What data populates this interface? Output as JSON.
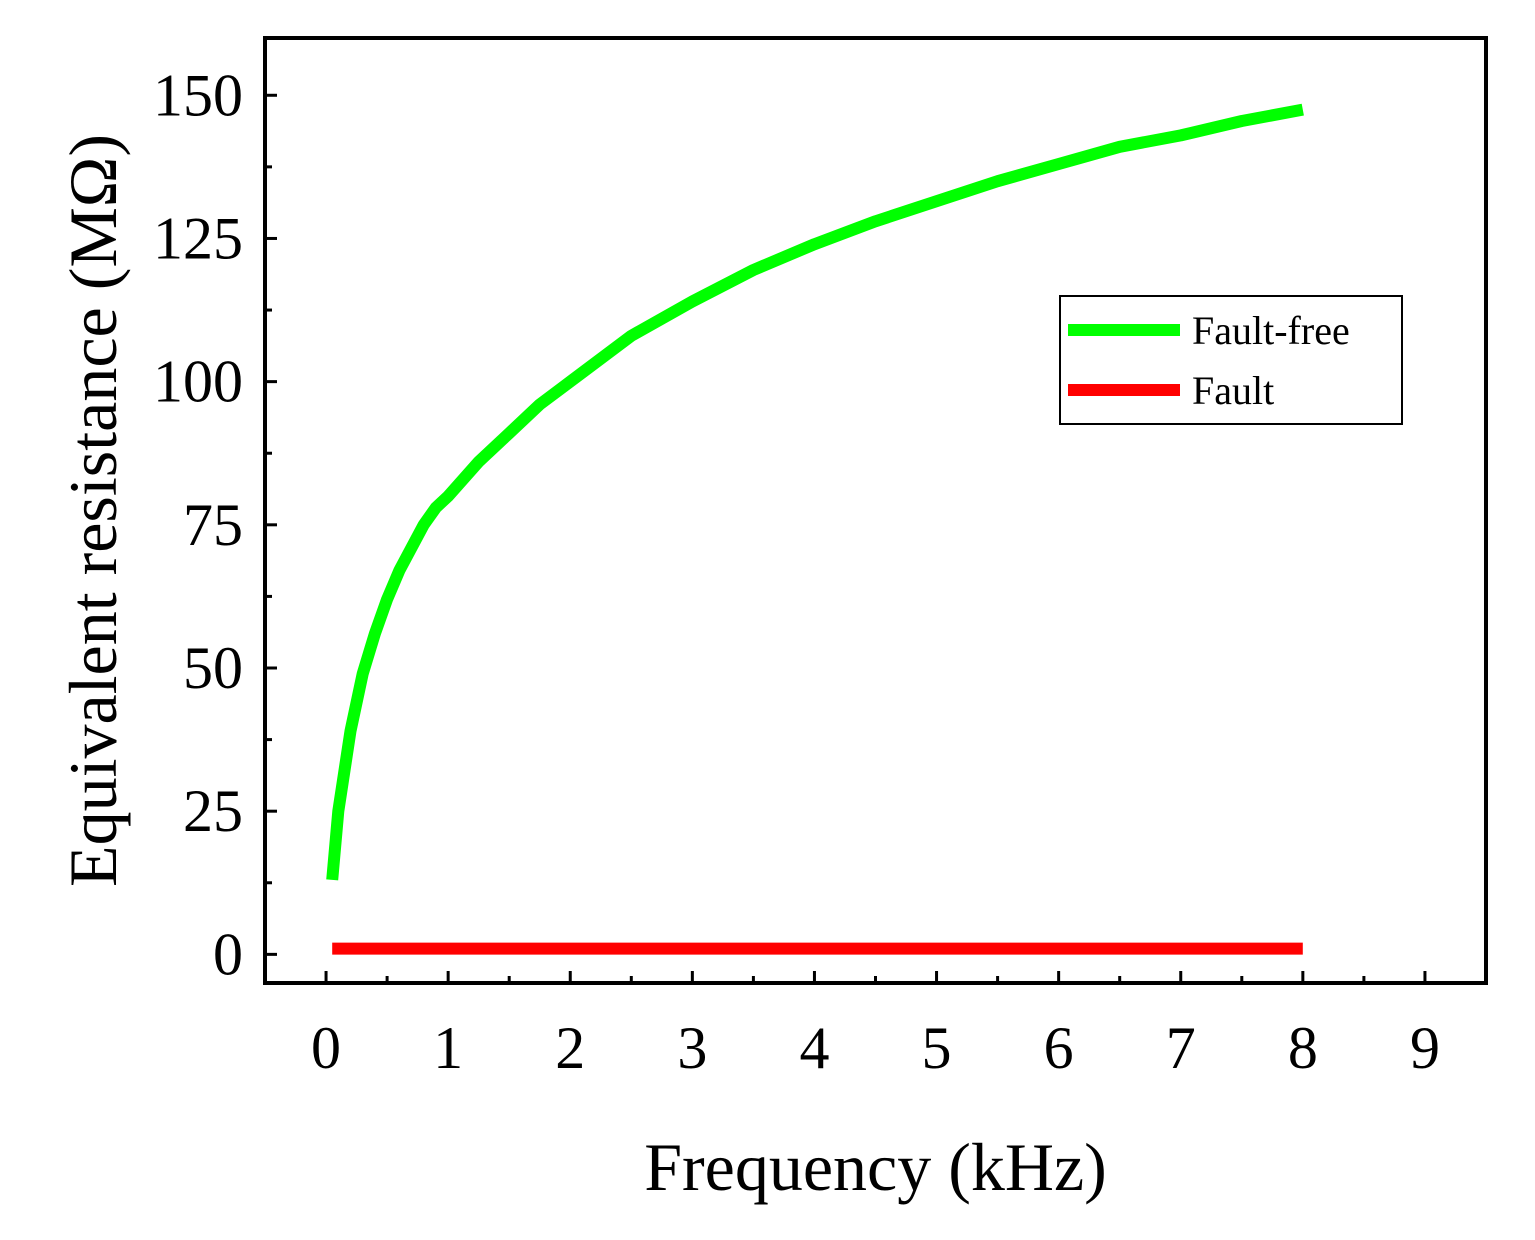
{
  "chart_data": {
    "type": "line",
    "title": "",
    "xlabel": "Frequency (kHz)",
    "ylabel": "Equivalent resistance (MΩ)",
    "xlim": [
      -0.5,
      9.5
    ],
    "ylim": [
      -5,
      160
    ],
    "xticks": [
      0,
      1,
      2,
      3,
      4,
      5,
      6,
      7,
      8,
      9
    ],
    "yticks": [
      0,
      25,
      50,
      75,
      100,
      125,
      150
    ],
    "grid": false,
    "legend_position": "top-right",
    "series": [
      {
        "name": "Fault-free",
        "color": "#00ff00",
        "x": [
          0.05,
          0.1,
          0.2,
          0.3,
          0.4,
          0.5,
          0.6,
          0.7,
          0.8,
          0.9,
          1.0,
          1.25,
          1.5,
          1.75,
          2.0,
          2.5,
          3.0,
          3.5,
          4.0,
          4.5,
          5.0,
          5.5,
          6.0,
          6.5,
          7.0,
          7.5,
          8.0
        ],
        "y": [
          13,
          25,
          39,
          49,
          56,
          62,
          67,
          71,
          75,
          78,
          80,
          86,
          91,
          96,
          100,
          108,
          114,
          119.5,
          124,
          128,
          131.5,
          135,
          138,
          141,
          143,
          145.5,
          147.5
        ]
      },
      {
        "name": "Fault",
        "color": "#ff0000",
        "x": [
          0.05,
          0.5,
          1,
          2,
          3,
          4,
          5,
          6,
          7,
          8
        ],
        "y": [
          1,
          1,
          1,
          1,
          1,
          1,
          1,
          1,
          1,
          1
        ]
      }
    ]
  }
}
